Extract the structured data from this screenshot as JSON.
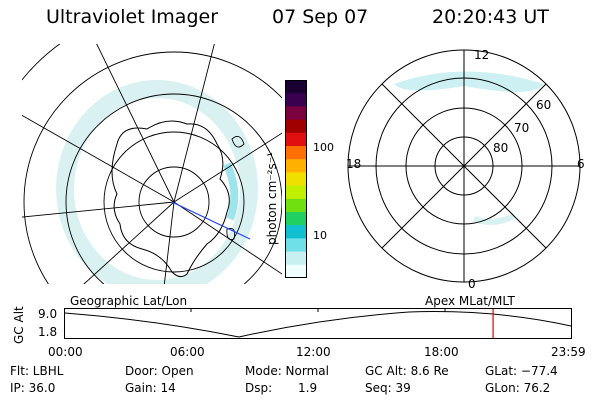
{
  "header": {
    "instrument": "Ultraviolet Imager",
    "date": "07 Sep 07",
    "time": "20:20:43 UT"
  },
  "colorbar": {
    "unit": "photon cm⁻²s⁻¹",
    "tick_high": "100",
    "tick_low": "10",
    "colors": [
      "#1a0030",
      "#3a0050",
      "#7a0040",
      "#a00000",
      "#e01010",
      "#ff7000",
      "#ffb000",
      "#f0e000",
      "#c0f000",
      "#70e010",
      "#20d060",
      "#10c0d0",
      "#70e0e8",
      "#c8f0f0",
      "#f0ffff"
    ]
  },
  "left_map": {
    "label": "Geographic Lat/Lon"
  },
  "right_map": {
    "label": "Apex  MLat/MLT",
    "mlt_top": "12",
    "mlt_bottom": "0",
    "mlt_left": "18",
    "mlt_right": "6",
    "lat_60": "60",
    "lat_70": "70",
    "lat_80": "80"
  },
  "timeline": {
    "axis_label": "GC Alt",
    "y_high": "9.0",
    "y_low": "1.8",
    "ticks": [
      "00:00",
      "06:00",
      "12:00",
      "18:00",
      "23:59"
    ],
    "current_fraction": 0.846
  },
  "status": {
    "flt": "Flt: LBHL",
    "door": "Door: Open",
    "mode": "Mode: Normal",
    "gc_alt": "GC Alt: 8.6 Re",
    "glat": "GLat: −77.4",
    "ip": "IP: 36.0",
    "gain": "Gain: 14",
    "dsp_label": "Dsp:",
    "dsp_value": "1.9",
    "seq": "Seq: 39",
    "glon": "GLon:  76.2"
  }
}
